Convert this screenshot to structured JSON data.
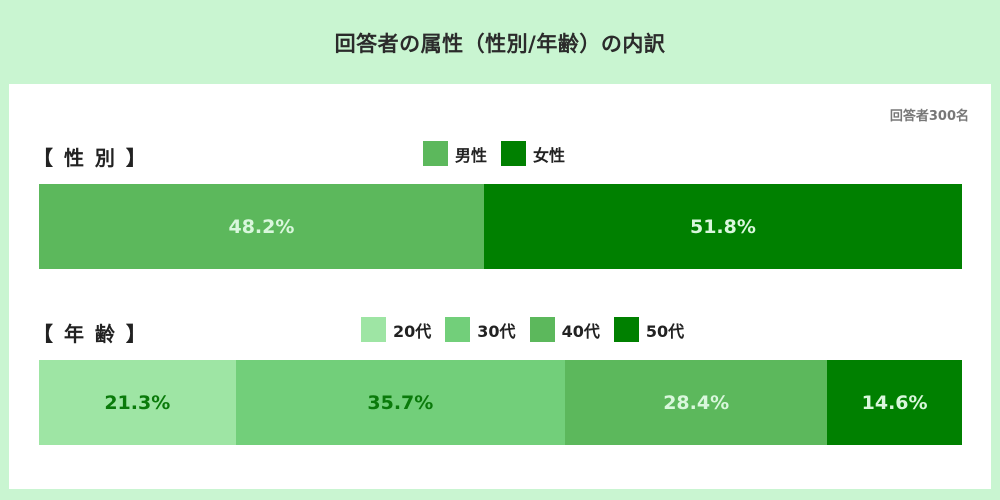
{
  "title": "回答者の属性（性別/年齢）の内訳",
  "respondents_note": "回答者300名",
  "chart_data": [
    {
      "type": "bar",
      "orientation": "horizontal-stacked-100",
      "label": "【 性 別 】",
      "series": [
        {
          "name": "男性",
          "value": 48.2,
          "value_label": "48.2%",
          "color": "#5cb85c",
          "text_color": "#d9f7dc"
        },
        {
          "name": "女性",
          "value": 51.8,
          "value_label": "51.8%",
          "color": "#008000",
          "text_color": "#d9f7dc"
        }
      ]
    },
    {
      "type": "bar",
      "orientation": "horizontal-stacked-100",
      "label": "【 年 齢 】",
      "series": [
        {
          "name": "20代",
          "value": 21.3,
          "value_label": "21.3%",
          "color": "#9ee5a4",
          "text_color": "#0a7a0a"
        },
        {
          "name": "30代",
          "value": 35.7,
          "value_label": "35.7%",
          "color": "#72cf7a",
          "text_color": "#0a7a0a"
        },
        {
          "name": "40代",
          "value": 28.4,
          "value_label": "28.4%",
          "color": "#5cb85c",
          "text_color": "#d9f7dc"
        },
        {
          "name": "50代",
          "value": 14.6,
          "value_label": "14.6%",
          "color": "#008000",
          "text_color": "#d9f7dc"
        }
      ]
    }
  ]
}
